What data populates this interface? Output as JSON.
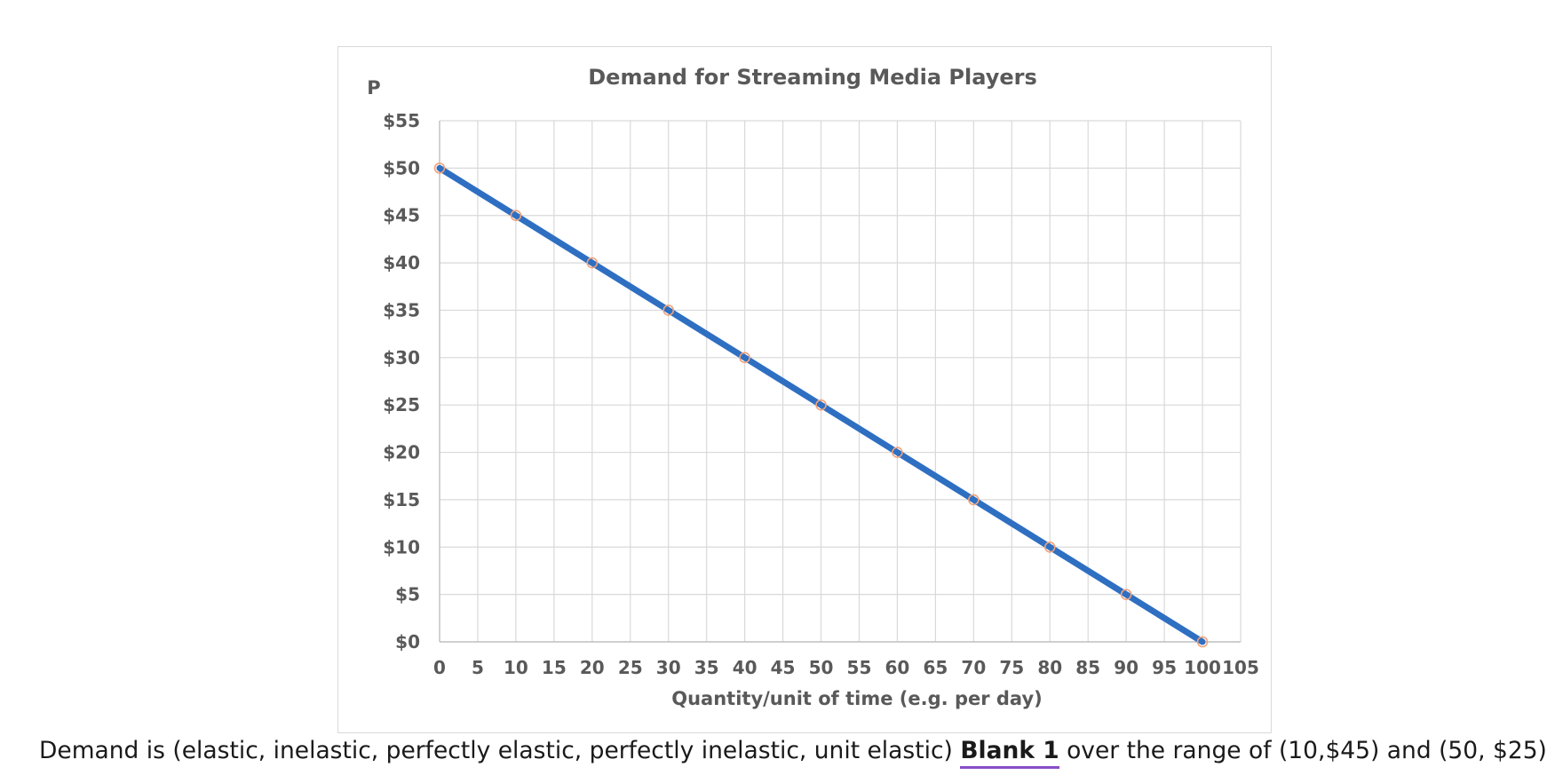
{
  "chart_data": {
    "type": "line",
    "title": "Demand for Streaming Media Players",
    "ylabel": "P",
    "xlabel": "Quantity/unit of time (e.g. per day)",
    "x": [
      0,
      10,
      20,
      30,
      40,
      50,
      60,
      70,
      80,
      90,
      100
    ],
    "series": [
      {
        "values": [
          50,
          45,
          40,
          35,
          30,
          25,
          20,
          15,
          10,
          5,
          0
        ]
      }
    ],
    "xlim": [
      0,
      105
    ],
    "ylim": [
      0,
      55
    ],
    "x_ticks": [
      "0",
      "5",
      "10",
      "15",
      "20",
      "25",
      "30",
      "35",
      "40",
      "45",
      "50",
      "55",
      "60",
      "65",
      "70",
      "75",
      "80",
      "85",
      "90",
      "95",
      "100",
      "105"
    ],
    "y_ticks": [
      "$0",
      "$5",
      "$10",
      "$15",
      "$20",
      "$25",
      "$30",
      "$35",
      "$40",
      "$45",
      "$50",
      "$55"
    ],
    "grid": true,
    "line_color": "#2e6fc2",
    "marker_color": "#f0a27a"
  },
  "question": {
    "prefix": "Demand is (elastic, inelastic, perfectly elastic, perfectly inelastic, unit elastic)",
    "blank_label": "Blank 1",
    "suffix": "over the range of (10,$45) and (50, $25)."
  },
  "colors": {
    "blank_underline": "#8a4dc8"
  }
}
